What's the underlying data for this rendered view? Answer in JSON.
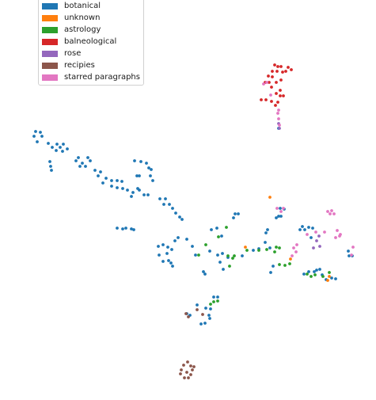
{
  "chart_data": {
    "type": "scatter",
    "title": "",
    "xlabel": "",
    "ylabel": "",
    "axes_visible": false,
    "legend_placement": "top-left",
    "series": [
      {
        "name": "botanical",
        "color": "#1f77b4",
        "points": [
          [
            45,
            166
          ],
          [
            51,
            167
          ],
          [
            43,
            172
          ],
          [
            53,
            172
          ],
          [
            47,
            179
          ],
          [
            61,
            181
          ],
          [
            72,
            182
          ],
          [
            80,
            182
          ],
          [
            66,
            186
          ],
          [
            76,
            186
          ],
          [
            85,
            188
          ],
          [
            71,
            190
          ],
          [
            79,
            191
          ],
          [
            63,
            204
          ],
          [
            99,
            199
          ],
          [
            111,
            199
          ],
          [
            96,
            203
          ],
          [
            104,
            206
          ],
          [
            64,
            210
          ],
          [
            101,
            210
          ],
          [
            114,
            203
          ],
          [
            65,
            215
          ],
          [
            108,
            210
          ],
          [
            120,
            215
          ],
          [
            127,
            217
          ],
          [
            124,
            222
          ],
          [
            134,
            225
          ],
          [
            141,
            228
          ],
          [
            148,
            228
          ],
          [
            154,
            229
          ],
          [
            130,
            231
          ],
          [
            141,
            235
          ],
          [
            148,
            237
          ],
          [
            155,
            238
          ],
          [
            170,
            203
          ],
          [
            178,
            204
          ],
          [
            185,
            206
          ],
          [
            188,
            212
          ],
          [
            191,
            214
          ],
          [
            173,
            222
          ],
          [
            176,
            222
          ],
          [
            190,
            222
          ],
          [
            193,
            228
          ],
          [
            161,
            240
          ],
          [
            174,
            238
          ],
          [
            168,
            243
          ],
          [
            176,
            240
          ],
          [
            166,
            248
          ],
          [
            182,
            246
          ],
          [
            187,
            246
          ],
          [
            202,
            251
          ],
          [
            209,
            251
          ],
          [
            207,
            258
          ],
          [
            214,
            258
          ],
          [
            218,
            263
          ],
          [
            222,
            269
          ],
          [
            227,
            274
          ],
          [
            230,
            277
          ],
          [
            148,
            288
          ],
          [
            155,
            289
          ],
          [
            159,
            288
          ],
          [
            166,
            289
          ],
          [
            169,
            290
          ],
          [
            200,
            311
          ],
          [
            206,
            309
          ],
          [
            212,
            312
          ],
          [
            217,
            315
          ],
          [
            201,
            322
          ],
          [
            211,
            320
          ],
          [
            206,
            330
          ],
          [
            213,
            329
          ],
          [
            218,
            336
          ],
          [
            216,
            332
          ],
          [
            221,
            304
          ],
          [
            225,
            300
          ],
          [
            236,
            302
          ],
          [
            243,
            311
          ],
          [
            247,
            322
          ],
          [
            257,
            343
          ],
          [
            259,
            346
          ],
          [
            267,
            290
          ],
          [
            274,
            288
          ],
          [
            280,
            298
          ],
          [
            275,
            322
          ],
          [
            281,
            320
          ],
          [
            288,
            325
          ],
          [
            278,
            331
          ],
          [
            282,
            340
          ],
          [
            265,
            317
          ],
          [
            297,
            270
          ],
          [
            301,
            270
          ],
          [
            295,
            275
          ],
          [
            306,
            323
          ],
          [
            320,
            316
          ],
          [
            327,
            314
          ],
          [
            335,
            306
          ],
          [
            336,
            294
          ],
          [
            338,
            290
          ],
          [
            341,
            313
          ],
          [
            345,
            336
          ],
          [
            349,
            275
          ],
          [
            352,
            273
          ],
          [
            355,
            273
          ],
          [
            354,
            263
          ],
          [
            359,
            264
          ],
          [
            342,
            344
          ],
          [
            379,
            290
          ],
          [
            382,
            286
          ],
          [
            385,
            290
          ],
          [
            390,
            287
          ],
          [
            395,
            288
          ],
          [
            393,
            300
          ],
          [
            384,
            346
          ],
          [
            390,
            343
          ],
          [
            397,
            343
          ],
          [
            400,
            341
          ],
          [
            404,
            340
          ],
          [
            407,
            347
          ],
          [
            412,
            353
          ],
          [
            419,
            351
          ],
          [
            424,
            352
          ],
          [
            440,
            317
          ],
          [
            441,
            323
          ],
          [
            445,
            323
          ],
          [
            352,
            162
          ],
          [
            270,
            375
          ],
          [
            275,
            375
          ],
          [
            249,
            385
          ],
          [
            260,
            389
          ],
          [
            266,
            390
          ],
          [
            264,
            398
          ],
          [
            259,
            408
          ],
          [
            254,
            409
          ],
          [
            265,
            402
          ],
          [
            240,
            398
          ],
          [
            236,
            396
          ]
        ]
      },
      {
        "name": "unknown",
        "color": "#ff7f0e",
        "points": [
          [
            341,
            249
          ],
          [
            310,
            312
          ],
          [
            367,
            327
          ],
          [
            414,
            354
          ],
          [
            416,
            349
          ]
        ]
      },
      {
        "name": "astrology",
        "color": "#2ca02c",
        "points": [
          [
            286,
            287
          ],
          [
            276,
            299
          ],
          [
            260,
            309
          ],
          [
            251,
            322
          ],
          [
            288,
            323
          ],
          [
            294,
            326
          ],
          [
            296,
            323
          ],
          [
            290,
            336
          ],
          [
            312,
            316
          ],
          [
            327,
            316
          ],
          [
            337,
            315
          ],
          [
            347,
            318
          ],
          [
            349,
            312
          ],
          [
            353,
            313
          ],
          [
            353,
            334
          ],
          [
            360,
            335
          ],
          [
            366,
            333
          ],
          [
            388,
            346
          ],
          [
            393,
            349
          ],
          [
            398,
            347
          ],
          [
            408,
            349
          ],
          [
            416,
            344
          ],
          [
            266,
            384
          ],
          [
            275,
            380
          ],
          [
            270,
            381
          ]
        ]
      },
      {
        "name": "balneological",
        "color": "#d62728",
        "points": [
          [
            347,
            82
          ],
          [
            351,
            84
          ],
          [
            355,
            84
          ],
          [
            364,
            85
          ],
          [
            344,
            90
          ],
          [
            350,
            90
          ],
          [
            357,
            91
          ],
          [
            368,
            88
          ],
          [
            361,
            90
          ],
          [
            339,
            96
          ],
          [
            344,
            97
          ],
          [
            335,
            104
          ],
          [
            340,
            104
          ],
          [
            349,
            104
          ],
          [
            355,
            101
          ],
          [
            343,
            110
          ],
          [
            354,
            114
          ],
          [
            349,
            118
          ],
          [
            354,
            121
          ],
          [
            358,
            121
          ],
          [
            330,
            126
          ],
          [
            336,
            126
          ],
          [
            343,
            128
          ],
          [
            351,
            129
          ],
          [
            348,
            133
          ]
        ]
      },
      {
        "name": "rose",
        "color": "#9467bd",
        "points": [
          [
            352,
            156
          ],
          [
            353,
            162
          ],
          [
            403,
            298
          ],
          [
            404,
            311
          ],
          [
            400,
            304
          ],
          [
            396,
            313
          ]
        ]
      },
      {
        "name": "recipies",
        "color": "#8c564b",
        "points": [
          [
            237,
            457
          ],
          [
            232,
            461
          ],
          [
            241,
            462
          ],
          [
            245,
            463
          ],
          [
            229,
            467
          ],
          [
            243,
            467
          ],
          [
            236,
            470
          ],
          [
            228,
            472
          ],
          [
            241,
            473
          ],
          [
            233,
            477
          ],
          [
            238,
            477
          ],
          [
            235,
            396
          ],
          [
            238,
            400
          ],
          [
            249,
            391
          ],
          [
            256,
            397
          ]
        ]
      },
      {
        "name": "starred paragraphs",
        "color": "#e377c2",
        "points": [
          [
            333,
            106
          ],
          [
            337,
            104
          ],
          [
            342,
            120
          ],
          [
            352,
            139
          ],
          [
            351,
            143
          ],
          [
            352,
            150
          ],
          [
            353,
            158
          ],
          [
            350,
            263
          ],
          [
            358,
            263
          ],
          [
            355,
            267
          ],
          [
            414,
            267
          ],
          [
            419,
            266
          ],
          [
            422,
            270
          ],
          [
            417,
            270
          ],
          [
            375,
            309
          ],
          [
            371,
            313
          ],
          [
            374,
            318
          ],
          [
            369,
            323
          ],
          [
            388,
            296
          ],
          [
            399,
            293
          ],
          [
            410,
            293
          ],
          [
            426,
            291
          ],
          [
            430,
            296
          ],
          [
            424,
            300
          ],
          [
            429,
            298
          ],
          [
            446,
            312
          ],
          [
            444,
            322
          ]
        ]
      }
    ]
  }
}
